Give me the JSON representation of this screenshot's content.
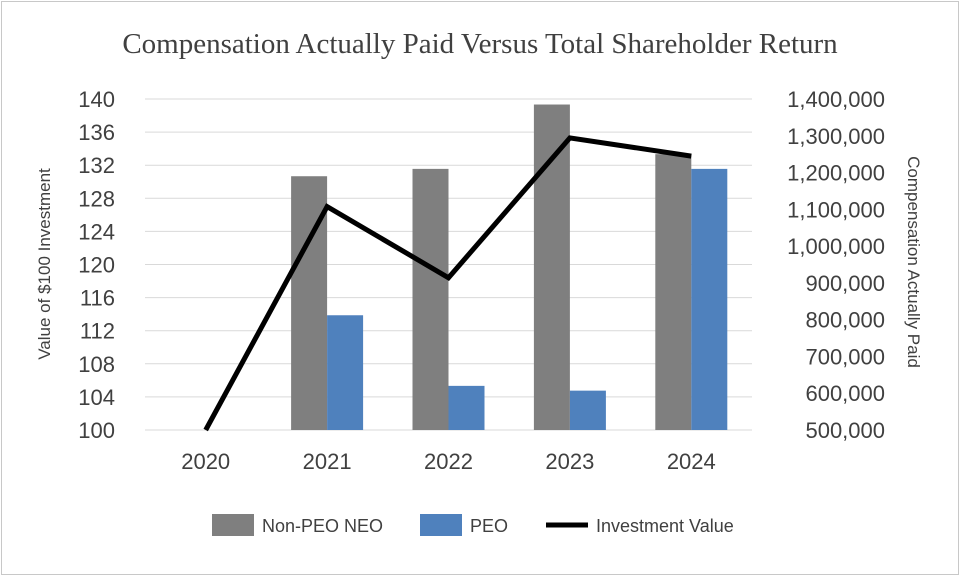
{
  "chart_data": {
    "type": "bar+line",
    "title": "Compensation Actually Paid Versus Total Shareholder Return",
    "categories": [
      "2020",
      "2021",
      "2022",
      "2023",
      "2024"
    ],
    "series": [
      {
        "name": "Non-PEO NEO",
        "kind": "bar",
        "axis": "right",
        "color": "#7f7f7f",
        "values": [
          null,
          1190000,
          1210000,
          1385000,
          1250000
        ]
      },
      {
        "name": "PEO",
        "kind": "bar",
        "axis": "right",
        "color": "#4f81bd",
        "values": [
          null,
          812000,
          620000,
          607000,
          1210000
        ]
      },
      {
        "name": "Investment Value",
        "kind": "line",
        "axis": "left",
        "color": "#000000",
        "values": [
          100,
          127.0,
          118.4,
          135.3,
          133.1
        ]
      }
    ],
    "left_axis": {
      "label": "Value of $100 Investment",
      "min": 100,
      "max": 140,
      "ticks": [
        "100",
        "104",
        "108",
        "112",
        "116",
        "120",
        "124",
        "128",
        "132",
        "136",
        "140"
      ]
    },
    "right_axis": {
      "label": "Compensation Actually Paid",
      "min": 500000,
      "max": 1400000,
      "ticks": [
        "500,000",
        "600,000",
        "700,000",
        "800,000",
        "900,000",
        "1,000,000",
        "1,100,000",
        "1,200,000",
        "1,300,000",
        "1,400,000"
      ]
    },
    "legend": [
      "Non-PEO NEO",
      "PEO",
      "Investment Value"
    ],
    "legend_position": "bottom",
    "grid": true
  }
}
